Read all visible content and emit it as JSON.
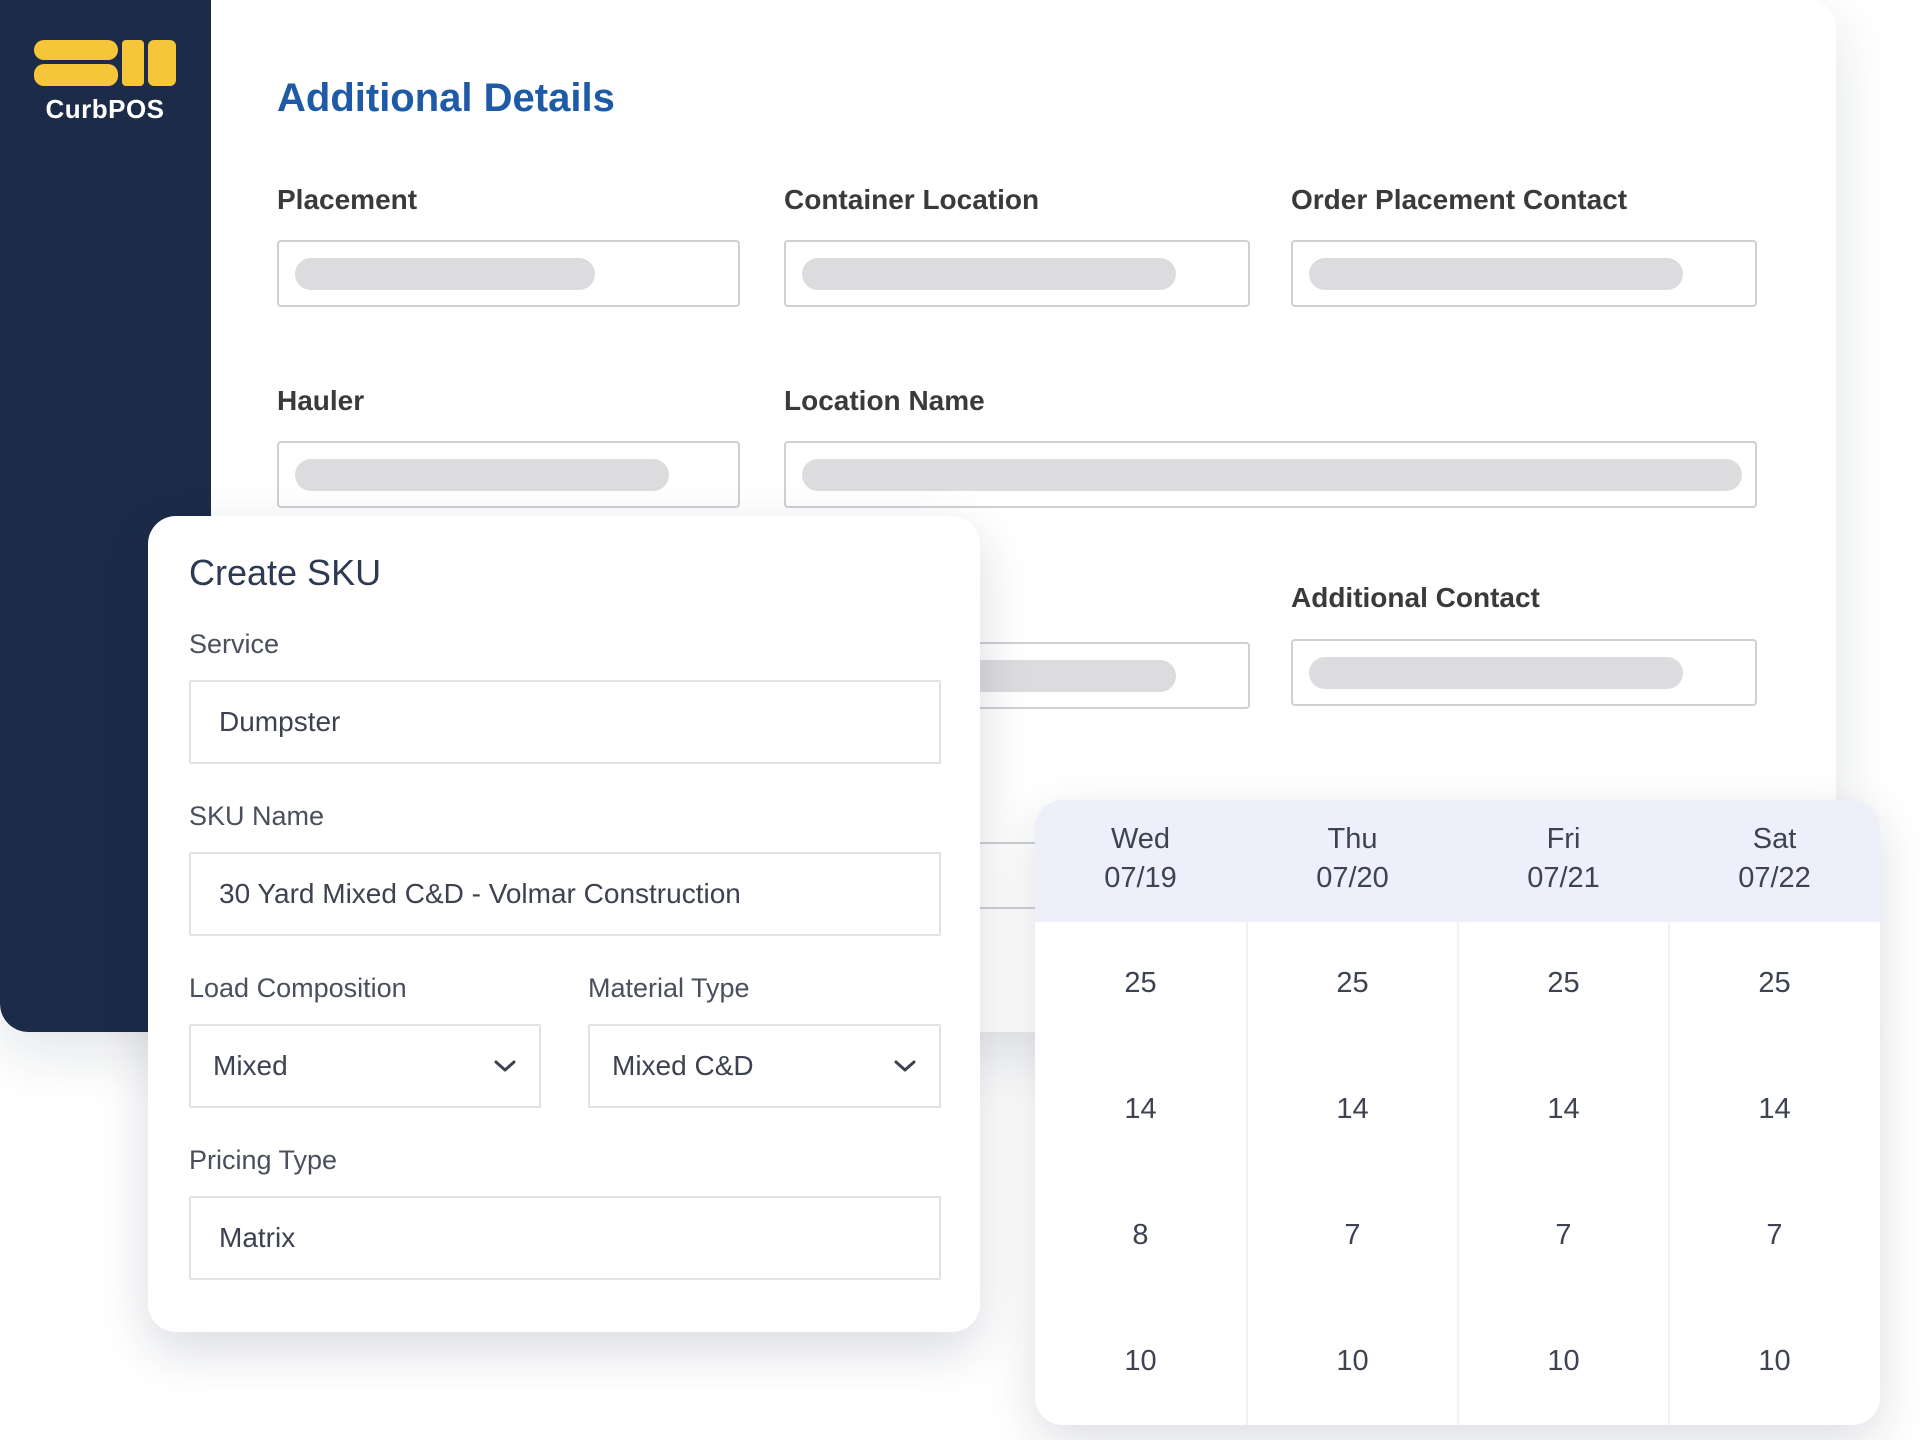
{
  "app": {
    "logo_text": "CurbPOS",
    "colors": {
      "sidebar": "#1c2b47",
      "logo_accent": "#f5c53a",
      "title_blue": "#1f5aa6",
      "calendar_header": "#edf0fb"
    }
  },
  "details": {
    "title": "Additional Details",
    "fields": {
      "placement": "Placement",
      "container_location": "Container Location",
      "order_placement_contact": "Order Placement Contact",
      "hauler": "Hauler",
      "location_name": "Location Name",
      "additional_contact": "Additional Contact"
    }
  },
  "sku": {
    "title": "Create SKU",
    "service_label": "Service",
    "service_value": "Dumpster",
    "sku_name_label": "SKU Name",
    "sku_name_value": "30 Yard Mixed C&D - Volmar Construction",
    "load_composition_label": "Load Composition",
    "load_composition_value": "Mixed",
    "material_type_label": "Material Type",
    "material_type_value": "Mixed C&D",
    "pricing_type_label": "Pricing Type",
    "pricing_type_value": "Matrix"
  },
  "calendar": {
    "days": [
      {
        "day": "Wed",
        "date": "07/19",
        "values": [
          "25",
          "14",
          "8",
          "10"
        ]
      },
      {
        "day": "Thu",
        "date": "07/20",
        "values": [
          "25",
          "14",
          "7",
          "10"
        ]
      },
      {
        "day": "Fri",
        "date": "07/21",
        "values": [
          "25",
          "14",
          "7",
          "10"
        ]
      },
      {
        "day": "Sat",
        "date": "07/22",
        "values": [
          "25",
          "14",
          "7",
          "10"
        ]
      }
    ]
  }
}
